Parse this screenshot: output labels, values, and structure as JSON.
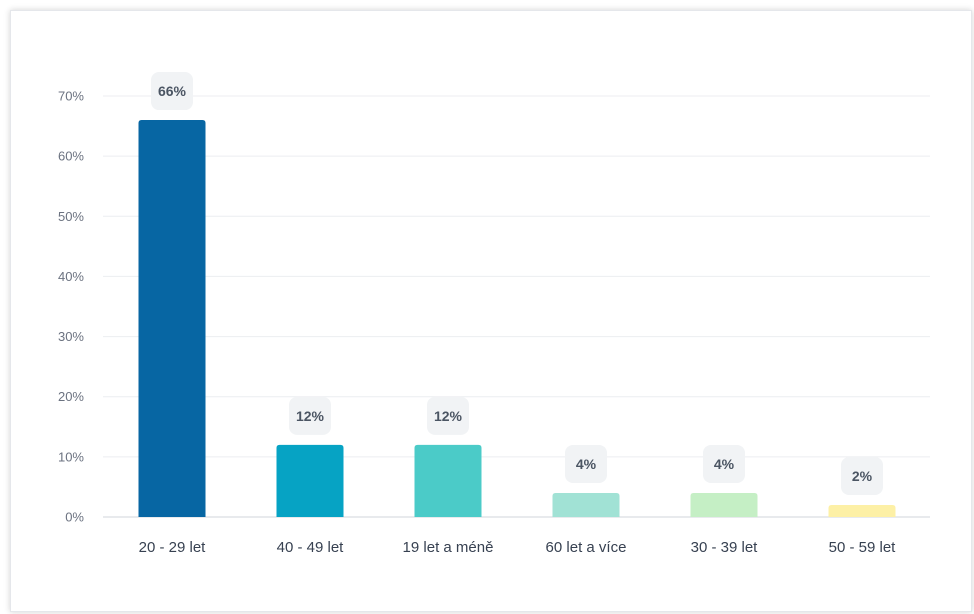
{
  "chart_data": {
    "type": "bar",
    "categories": [
      "20 - 29 let",
      "40 - 49 let",
      "19 let a méně",
      "60 let a více",
      "30 - 39 let",
      "50 - 59 let"
    ],
    "values": [
      66,
      12,
      12,
      4,
      4,
      2
    ],
    "data_labels": [
      "66%",
      "12%",
      "12%",
      "4%",
      "4%",
      "2%"
    ],
    "colors": [
      "#0766a3",
      "#06a3c4",
      "#4bcbc8",
      "#a1e2d5",
      "#c5efc5",
      "#fdf0a6"
    ],
    "yticks": [
      0,
      10,
      20,
      30,
      40,
      50,
      60,
      70
    ],
    "ytick_labels": [
      "0%",
      "10%",
      "20%",
      "30%",
      "40%",
      "50%",
      "60%",
      "70%"
    ],
    "ylim": [
      0,
      70
    ],
    "grid": true,
    "legend": "none",
    "title": "",
    "xlabel": "",
    "ylabel": ""
  }
}
